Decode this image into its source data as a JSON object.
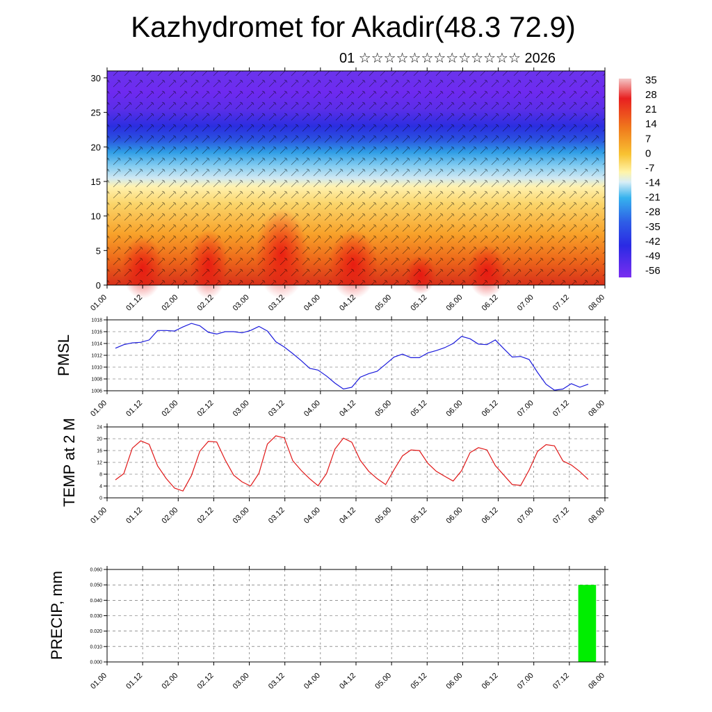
{
  "title": "Kazhydromet for Akadir(48.3 72.9)",
  "subtitle": "01 ☆☆☆☆☆☆☆☆☆☆☆☆☆ 2026",
  "time_ticks": [
    "01.00",
    "01.12",
    "02.00",
    "02.12",
    "03.00",
    "03.12",
    "04.00",
    "04.12",
    "05.00",
    "05.12",
    "06.00",
    "06.12",
    "07.00",
    "07.12",
    "08.00"
  ],
  "colors": {
    "pmsl_line": "#1a1adc",
    "temp_line": "#e01818",
    "precip_bar": "#00ee00"
  },
  "chart_data": [
    {
      "type": "heatmap",
      "title": "",
      "xlabel": "",
      "ylabel": "",
      "ylim": [
        0,
        31
      ],
      "yticks": [
        0,
        5,
        10,
        15,
        20,
        25,
        30
      ],
      "x_range": [
        "01.00",
        "08.00"
      ],
      "overlay": "wind barbs",
      "colorbar": {
        "labels": [
          "35",
          "28",
          "21",
          "14",
          "7",
          "0",
          "-7",
          "-14",
          "-21",
          "-28",
          "-35",
          "-42",
          "-49",
          "-56"
        ],
        "range": [
          -63,
          42
        ]
      }
    },
    {
      "type": "line",
      "ylabel": "PMSL",
      "ylim": [
        1006,
        1018
      ],
      "yticks": [
        1006,
        1008,
        1010,
        1012,
        1014,
        1016,
        1018
      ],
      "grid": true,
      "series": [
        {
          "values": [
            1013.2,
            1013.8,
            1014.1,
            1014.2,
            1014.6,
            1016.2,
            1016.2,
            1016.1,
            1016.8,
            1017.4,
            1017.0,
            1015.9,
            1015.6,
            1016.0,
            1016.0,
            1015.8,
            1016.2,
            1016.9,
            1016.1,
            1014.3,
            1013.4,
            1012.3,
            1011.1,
            1009.8,
            1009.5,
            1008.5,
            1007.3,
            1006.3,
            1006.6,
            1008.3,
            1008.9,
            1009.3,
            1010.5,
            1011.7,
            1012.2,
            1011.6,
            1011.6,
            1012.4,
            1012.8,
            1013.3,
            1014.0,
            1015.2,
            1014.8,
            1013.9,
            1013.8,
            1014.6,
            1013.1,
            1011.7,
            1011.8,
            1011.3,
            1009.1,
            1007.1,
            1006.1,
            1006.3,
            1007.2,
            1006.6,
            1007.1
          ]
        }
      ]
    },
    {
      "type": "line",
      "ylabel": "TEMP at 2 M",
      "ylim": [
        0,
        24
      ],
      "yticks": [
        0,
        4,
        8,
        12,
        16,
        20,
        24
      ],
      "grid": true,
      "series": [
        {
          "values": [
            6.1,
            8.2,
            16.8,
            19.3,
            18.1,
            10.8,
            6.6,
            3.3,
            2.3,
            7.5,
            15.8,
            19.1,
            18.9,
            12.8,
            7.7,
            5.4,
            4.0,
            8.3,
            18.2,
            21.0,
            20.3,
            12.6,
            9.3,
            6.5,
            4.1,
            8.2,
            16.5,
            20.2,
            18.8,
            12.7,
            9.0,
            6.5,
            4.5,
            9.5,
            14.2,
            16.2,
            16.0,
            11.7,
            9.0,
            7.3,
            5.7,
            9.2,
            15.3,
            17.0,
            16.2,
            10.9,
            7.7,
            4.5,
            4.2,
            9.4,
            15.7,
            18.0,
            17.6,
            12.5,
            11.1,
            8.9,
            6.2
          ]
        }
      ]
    },
    {
      "type": "bar",
      "ylabel": "PRECIP, mm",
      "ylim": [
        0,
        0.06
      ],
      "yticks": [
        "0.000",
        "0.010",
        "0.020",
        "0.030",
        "0.040",
        "0.050",
        "0.060"
      ],
      "grid": true,
      "bars": [
        {
          "from": "07.15",
          "to": "07.21",
          "value": 0.05
        }
      ]
    }
  ]
}
